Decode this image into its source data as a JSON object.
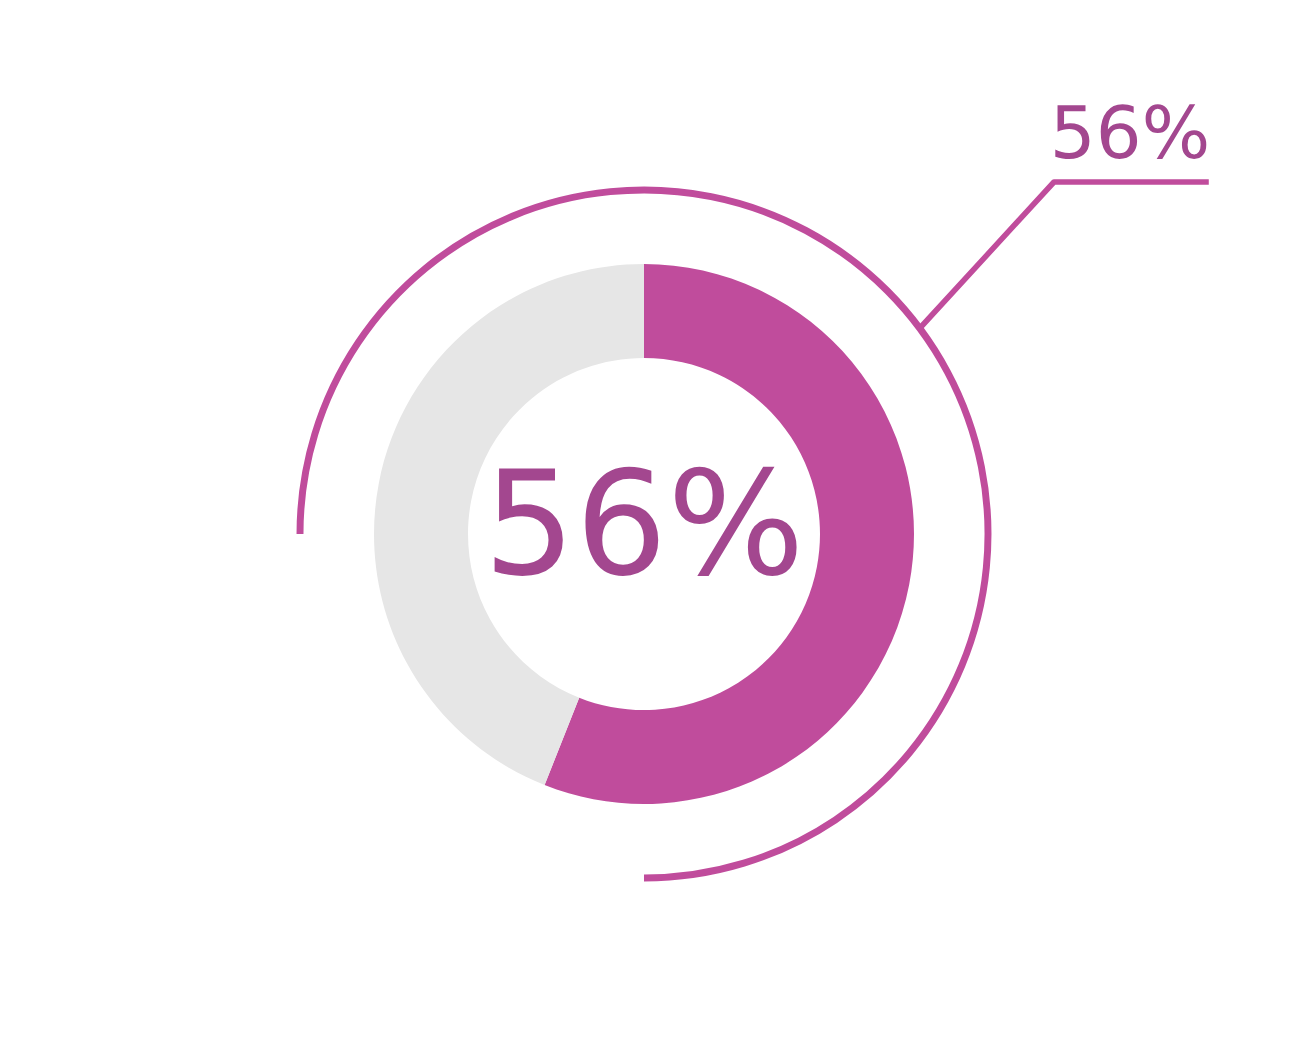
{
  "chart_data": {
    "type": "donut",
    "categories": [
      null,
      null
    ],
    "values": [
      56,
      44
    ],
    "colors": [
      "#c04c9c",
      "#e6e6e6"
    ],
    "annotations": [
      "56%",
      "56%"
    ]
  }
}
